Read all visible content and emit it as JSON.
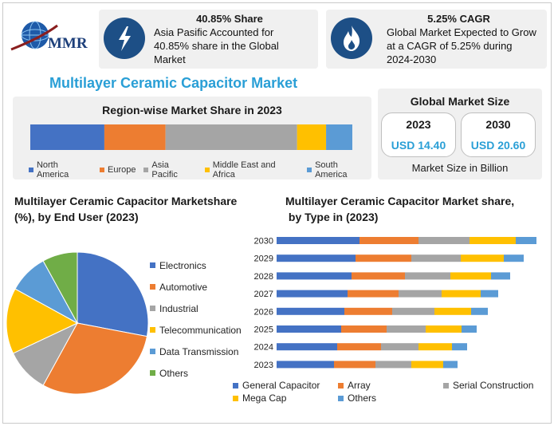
{
  "logo": {
    "text": "MMR"
  },
  "stat1": {
    "title": "40.85% Share",
    "text": "Asia Pasific Accounted for 40.85% share in the Global Market",
    "icon": "lightning-icon"
  },
  "stat2": {
    "title": "5.25% CAGR",
    "text": "Global Market Expected to Grow at a CAGR of 5.25% during 2024-2030",
    "icon": "flame-icon"
  },
  "main_title": "Multilayer Ceramic Capacitor Market",
  "region": {
    "title": "Region-wise Market Share in 2023",
    "legend": [
      "North America",
      "Europe",
      "Asia Pacific",
      "Middle East and Africa",
      "South America"
    ]
  },
  "global_size": {
    "title": "Global Market Size",
    "y1": "2023",
    "v1": "USD 14.40",
    "y2": "2030",
    "v2": "USD 20.60",
    "caption": "Market Size in Billion"
  },
  "pie": {
    "title_line1": "Multilayer Ceramic Capacitor Marketshare",
    "title_line2": "(%), by End User (2023)"
  },
  "bars": {
    "title_line1": "Multilayer Ceramic Capacitor Market share,",
    "title_line2": " by Type in (2023)"
  },
  "colors": {
    "blue": "#4472c4",
    "orange": "#ed7d31",
    "gray": "#a5a5a5",
    "yellow": "#ffc000",
    "lightblue": "#5b9bd5",
    "green": "#70ad47",
    "accent": "#2a9fd6",
    "dark": "#1d4f86"
  },
  "chart_data": [
    {
      "type": "bar",
      "orientation": "horizontal-stacked-100",
      "title": "Region-wise Market Share in 2023",
      "series": [
        {
          "name": "North America",
          "values": [
            23
          ]
        },
        {
          "name": "Europe",
          "values": [
            19
          ]
        },
        {
          "name": "Asia Pacific",
          "values": [
            40.85
          ]
        },
        {
          "name": "Middle East and Africa",
          "values": [
            9
          ]
        },
        {
          "name": "South America",
          "values": [
            8.15
          ]
        }
      ],
      "legend": "bottom"
    },
    {
      "type": "pie",
      "title": "Multilayer Ceramic Capacitor Marketshare (%), by End User (2023)",
      "labels": [
        "Electronics",
        "Automotive",
        "Industrial",
        "Telecommunication",
        "Data Transmission",
        "Others"
      ],
      "values": [
        28,
        30,
        10,
        15,
        9,
        8
      ],
      "legend": "right"
    },
    {
      "type": "bar",
      "orientation": "horizontal-stacked",
      "title": "Multilayer Ceramic Capacitor Market share, by Type in (2023)",
      "categories": [
        "2030",
        "2029",
        "2028",
        "2027",
        "2026",
        "2025",
        "2024",
        "2023"
      ],
      "series": [
        {
          "name": "General Capacitor",
          "values": [
            104,
            99,
            94,
            89,
            85,
            81,
            76,
            72
          ]
        },
        {
          "name": "Array",
          "values": [
            74,
            70,
            67,
            64,
            60,
            57,
            55,
            52
          ]
        },
        {
          "name": "Serial Construction",
          "values": [
            64,
            62,
            57,
            54,
            53,
            49,
            47,
            45
          ]
        },
        {
          "name": "Mega Cap",
          "values": [
            58,
            54,
            51,
            49,
            46,
            45,
            42,
            40
          ]
        },
        {
          "name": "Others",
          "values": [
            26,
            25,
            24,
            22,
            21,
            19,
            19,
            18
          ]
        }
      ],
      "legend": "bottom"
    }
  ]
}
